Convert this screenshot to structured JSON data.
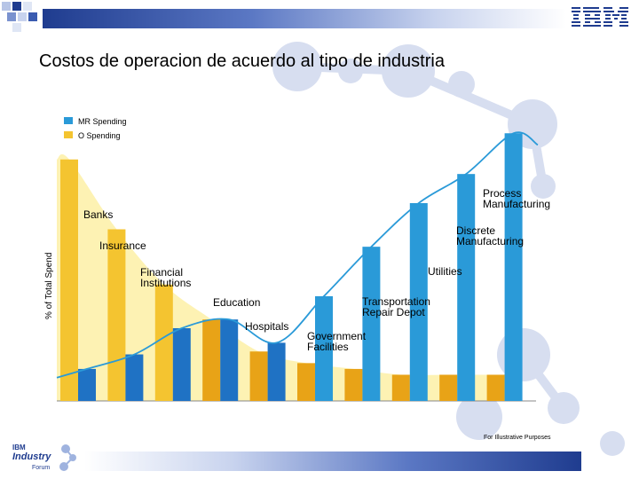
{
  "header": {
    "title": "Costos de operacion de acuerdo al tipo de industria",
    "brand": "IBM"
  },
  "footer": {
    "note": "For Illustrative Purposes",
    "forum_ibm": "IBM",
    "forum_industry": "Industry",
    "forum_forum": "Forum"
  },
  "colors": {
    "mr_spending": "#2a9ad8",
    "o_spending": "#f4c430",
    "curve_mr": "#2a9ad8",
    "curve_o": "#fdf2b3",
    "brand_blue": "#1f3c8f"
  },
  "chart_data": {
    "type": "bar",
    "ylabel": "% of Total Spend",
    "legend": [
      "MR Spending",
      "O Spending"
    ],
    "legend_position": "top-left",
    "grid": false,
    "categories": [
      "Banks",
      "Insurance",
      "Financial Institutions",
      "Education",
      "Hospitals",
      "Government Facilities",
      "Transportation Repair Depot",
      "Utilities",
      "Discrete Manufacturing",
      "Process Manufacturing"
    ],
    "category_labels": [
      [
        "Banks"
      ],
      [
        "Insurance"
      ],
      [
        "Financial",
        "Institutions"
      ],
      [
        "Education"
      ],
      [
        "Hospitals"
      ],
      [
        "Government",
        "Facilities"
      ],
      [
        "Transportation",
        "Repair Depot"
      ],
      [
        "Utilities"
      ],
      [
        "Discrete",
        "Manufacturing"
      ],
      [
        "Process",
        "Manufacturing"
      ]
    ],
    "series": [
      {
        "name": "O Spending",
        "values": [
          83,
          59,
          40,
          28,
          17,
          13,
          11,
          9,
          9,
          9
        ]
      },
      {
        "name": "MR Spending",
        "values": [
          11,
          16,
          25,
          28,
          20,
          36,
          53,
          68,
          78,
          92
        ]
      }
    ],
    "ylim": [
      0,
      100
    ]
  }
}
